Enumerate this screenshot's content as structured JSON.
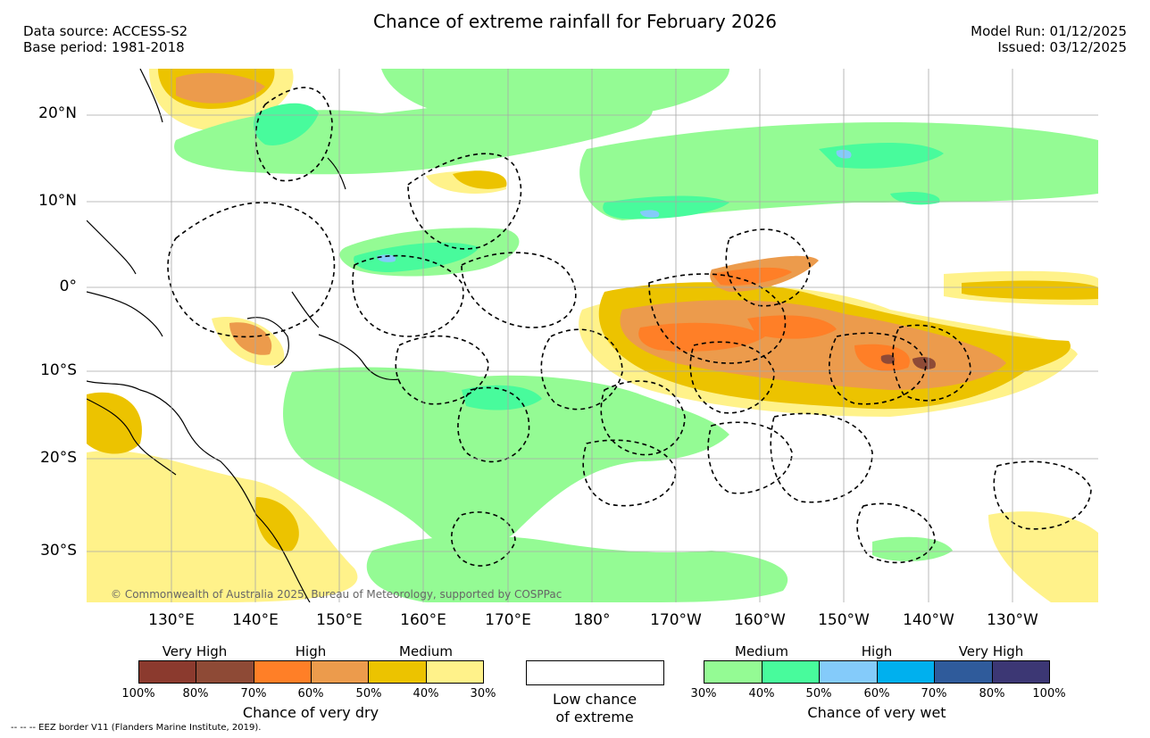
{
  "title": "Chance of extreme rainfall for February 2026",
  "data_source": "Data source: ACCESS-S2",
  "base_period": "Base period: 1981-2018",
  "model_run": "Model Run: 01/12/2025",
  "issued": "Issued: 03/12/2025",
  "lat_labels": [
    "20°N",
    "10°N",
    "0°",
    "10°S",
    "20°S",
    "30°S"
  ],
  "lon_labels": [
    "130°E",
    "140°E",
    "150°E",
    "160°E",
    "170°E",
    "180°",
    "170°W",
    "160°W",
    "150°W",
    "140°W",
    "130°W"
  ],
  "copyright": "© Commonwealth of Australia 2025, Bureau of Meteorology, supported by COSPPac",
  "legend": {
    "dry": {
      "categories": [
        "Very High",
        "High",
        "Medium"
      ],
      "colors": [
        "#8b3a2e",
        "#8e4a36",
        "#ff7f27",
        "#ec9b4c",
        "#ecc300",
        "#fff28a"
      ],
      "ticks": [
        "100%",
        "80%",
        "70%",
        "60%",
        "50%",
        "40%",
        "30%"
      ],
      "label": "Chance of very dry"
    },
    "low": {
      "line1": "Low chance",
      "line2": "of extreme"
    },
    "wet": {
      "categories": [
        "Medium",
        "High",
        "Very High"
      ],
      "colors": [
        "#94fb94",
        "#48fb9c",
        "#84cbfa",
        "#00b0ee",
        "#2f5b9b",
        "#3c3774"
      ],
      "ticks": [
        "30%",
        "40%",
        "50%",
        "60%",
        "70%",
        "80%",
        "100%"
      ],
      "label": "Chance of very wet"
    }
  },
  "eez_note": "--  --  -- EEZ border V11 (Flanders Marine Institute, 2019)."
}
